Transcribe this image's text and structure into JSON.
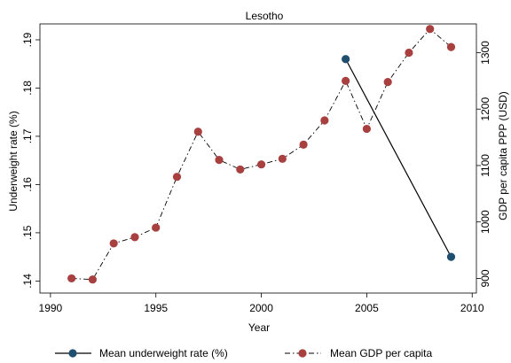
{
  "chart_data": {
    "type": "line",
    "title": "Lesotho",
    "xlabel": "Year",
    "ylabel_left": "Underweight rate (%)",
    "ylabel_right": "GDP per capita PPP (USD)",
    "xlim": [
      1989.5,
      2010.2
    ],
    "ylim_left": [
      0.1375,
      0.1933
    ],
    "ylim_right": [
      874,
      1351
    ],
    "x_ticks": [
      1990,
      1995,
      2000,
      2005,
      2010
    ],
    "x_tick_labels": [
      "1990",
      "1995",
      "2000",
      "2005",
      "2010"
    ],
    "y_left_ticks": [
      0.14,
      0.15,
      0.16,
      0.17,
      0.18,
      0.19
    ],
    "y_left_tick_labels": [
      ".14",
      ".15",
      ".16",
      ".17",
      ".18",
      ".19"
    ],
    "y_right_ticks": [
      900,
      1000,
      1100,
      1200,
      1300
    ],
    "y_right_tick_labels": [
      "900",
      "1000",
      "1100",
      "1200",
      "1300"
    ],
    "grid": false,
    "legend_position": "bottom",
    "series": [
      {
        "name": "Mean underweight rate (%)",
        "axis": "left",
        "color": "#1f4e6e",
        "line_style": "solid",
        "x": [
          2004,
          2009
        ],
        "values": [
          0.186,
          0.145
        ]
      },
      {
        "name": "Mean GDP per capita",
        "axis": "right",
        "color": "#a84040",
        "line_style": "dash-dot",
        "x": [
          1991,
          1992,
          1993,
          1994,
          1995,
          1996,
          1997,
          1998,
          1999,
          2000,
          2001,
          2002,
          2003,
          2004,
          2005,
          2006,
          2007,
          2008,
          2009
        ],
        "values": [
          900,
          898,
          962,
          973,
          990,
          1080,
          1160,
          1110,
          1093,
          1102,
          1112,
          1137,
          1180,
          1250,
          1165,
          1248,
          1300,
          1342,
          1310
        ]
      }
    ]
  }
}
